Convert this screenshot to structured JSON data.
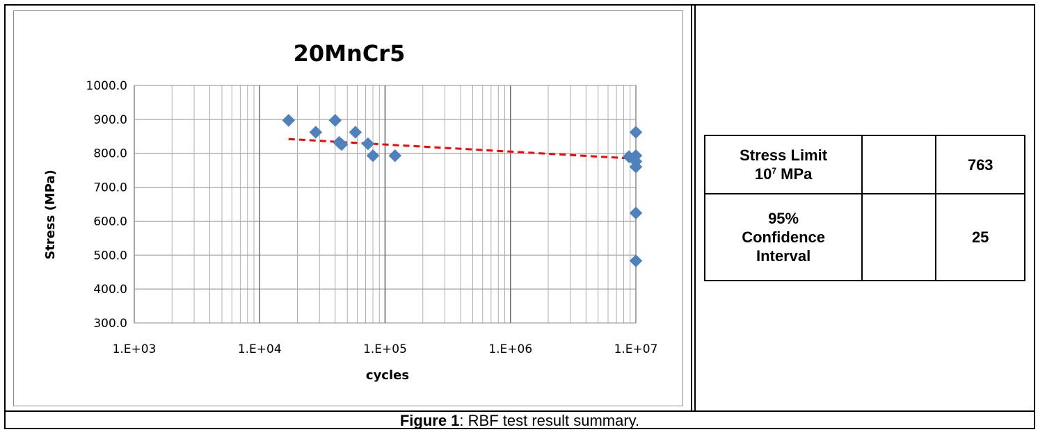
{
  "chart_data": {
    "type": "scatter",
    "title": "20MnCr5",
    "xlabel": "cycles",
    "ylabel": "Stress (MPa)",
    "xscale": "log",
    "xlim": [
      1000,
      10000000
    ],
    "ylim": [
      300,
      1000
    ],
    "x_ticks": [
      {
        "value": 1000,
        "label": "1.E+03"
      },
      {
        "value": 10000,
        "label": "1.E+04"
      },
      {
        "value": 100000,
        "label": "1.E+05"
      },
      {
        "value": 1000000,
        "label": "1.E+06"
      },
      {
        "value": 10000000,
        "label": "1.E+07"
      }
    ],
    "y_ticks": [
      {
        "value": 1000,
        "label": "1000.0"
      },
      {
        "value": 900,
        "label": "900.0"
      },
      {
        "value": 800,
        "label": "800.0"
      },
      {
        "value": 700,
        "label": "700.0"
      },
      {
        "value": 600,
        "label": "600.0"
      },
      {
        "value": 500,
        "label": "500.0"
      },
      {
        "value": 400,
        "label": "400.0"
      },
      {
        "value": 300,
        "label": "300.0"
      }
    ],
    "grid": true,
    "series": [
      {
        "marker": "diamond",
        "color": "#4f81bd",
        "points": [
          {
            "x": 17000,
            "y": 897
          },
          {
            "x": 28000,
            "y": 862
          },
          {
            "x": 40000,
            "y": 897
          },
          {
            "x": 43000,
            "y": 832
          },
          {
            "x": 45000,
            "y": 826
          },
          {
            "x": 58000,
            "y": 862
          },
          {
            "x": 73000,
            "y": 828
          },
          {
            "x": 80000,
            "y": 793
          },
          {
            "x": 120000,
            "y": 793
          },
          {
            "x": 8800000,
            "y": 790
          },
          {
            "x": 10000000,
            "y": 862
          },
          {
            "x": 10000000,
            "y": 793
          },
          {
            "x": 10000000,
            "y": 776
          },
          {
            "x": 10000000,
            "y": 760
          },
          {
            "x": 10000000,
            "y": 624
          },
          {
            "x": 10000000,
            "y": 483
          }
        ]
      }
    ],
    "trendline": {
      "style": "dashed",
      "color": "#ff0000",
      "points": [
        {
          "x": 17000,
          "y": 842
        },
        {
          "x": 10000000,
          "y": 784
        }
      ]
    }
  },
  "table": {
    "rows": [
      {
        "label_line1": "Stress Limit",
        "label_line2_base": "10",
        "label_line2_sup": "7",
        "label_line2_rest": " MPa",
        "middle": "",
        "value": "763"
      },
      {
        "label_line1": "95%",
        "label_line2": "Confidence",
        "label_line3": "Interval",
        "middle": "",
        "value": "25"
      }
    ]
  },
  "caption": {
    "bold": "Figure 1",
    "rest": ": RBF test result summary."
  }
}
